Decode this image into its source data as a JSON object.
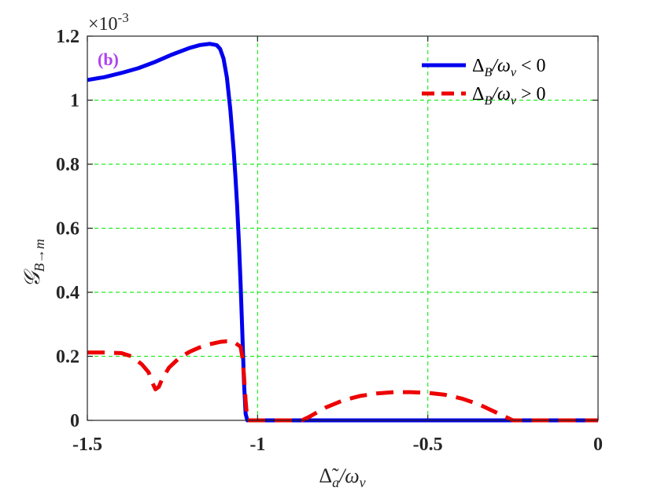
{
  "chart_data": {
    "type": "line",
    "panel_label": "(b)",
    "xlabel": "Δ̃a/ων",
    "ylabel": "𝒢B→m",
    "y_exponent_label": "×10-3",
    "xlim": [
      -1.5,
      0
    ],
    "ylim": [
      0,
      1.2
    ],
    "x_ticks": [
      -1.5,
      -1,
      -0.5,
      0
    ],
    "x_tick_labels": [
      "-1.5",
      "-1",
      "-0.5",
      "0"
    ],
    "y_ticks": [
      0,
      0.2,
      0.4,
      0.6,
      0.8,
      1.0,
      1.2
    ],
    "y_tick_labels": [
      "0",
      "0.2",
      "0.4",
      "0.6",
      "0.8",
      "1",
      "1.2"
    ],
    "grid": true,
    "grid_lines_x": [
      -1,
      -0.5
    ],
    "grid_lines_y": [
      0.2,
      0.4,
      0.6,
      0.8,
      1.0
    ],
    "legend_position": "top-right",
    "series": [
      {
        "name": "ΔB/ων < 0",
        "color": "#0000ee",
        "style": "solid",
        "x": [
          -1.5,
          -1.45,
          -1.4,
          -1.35,
          -1.3,
          -1.25,
          -1.2,
          -1.17,
          -1.14,
          -1.12,
          -1.11,
          -1.1,
          -1.09,
          -1.08,
          -1.07,
          -1.065,
          -1.06,
          -1.055,
          -1.05,
          -1.045,
          -1.04,
          -1.035,
          -1.03,
          -1.0,
          -0.8,
          -0.6,
          -0.4,
          -0.2,
          0
        ],
        "y": [
          1.063,
          1.072,
          1.085,
          1.1,
          1.12,
          1.143,
          1.163,
          1.172,
          1.176,
          1.172,
          1.16,
          1.13,
          1.07,
          0.97,
          0.84,
          0.76,
          0.67,
          0.56,
          0.43,
          0.28,
          0.12,
          0.02,
          0.0,
          0.0,
          0.0,
          0.0,
          0.0,
          0.0,
          0.0
        ]
      },
      {
        "name": "ΔB/ων > 0",
        "color": "#ee0000",
        "style": "dashed",
        "x": [
          -1.5,
          -1.45,
          -1.4,
          -1.37,
          -1.34,
          -1.32,
          -1.31,
          -1.3,
          -1.29,
          -1.28,
          -1.26,
          -1.23,
          -1.2,
          -1.17,
          -1.14,
          -1.11,
          -1.09,
          -1.07,
          -1.05,
          -1.045,
          -1.04,
          -1.035,
          -1.03,
          -1.0,
          -0.9,
          -0.87,
          -0.85,
          -0.8,
          -0.75,
          -0.7,
          -0.65,
          -0.6,
          -0.55,
          -0.5,
          -0.45,
          -0.4,
          -0.35,
          -0.3,
          -0.27,
          -0.25,
          -0.2,
          0
        ],
        "y": [
          0.212,
          0.212,
          0.21,
          0.2,
          0.175,
          0.15,
          0.12,
          0.097,
          0.105,
          0.13,
          0.165,
          0.195,
          0.214,
          0.228,
          0.238,
          0.245,
          0.247,
          0.245,
          0.23,
          0.2,
          0.14,
          0.06,
          0.0,
          0.0,
          0.0,
          0.0,
          0.01,
          0.04,
          0.062,
          0.076,
          0.084,
          0.088,
          0.088,
          0.086,
          0.08,
          0.068,
          0.05,
          0.025,
          0.01,
          0.0,
          0.0,
          0.0
        ]
      }
    ]
  }
}
